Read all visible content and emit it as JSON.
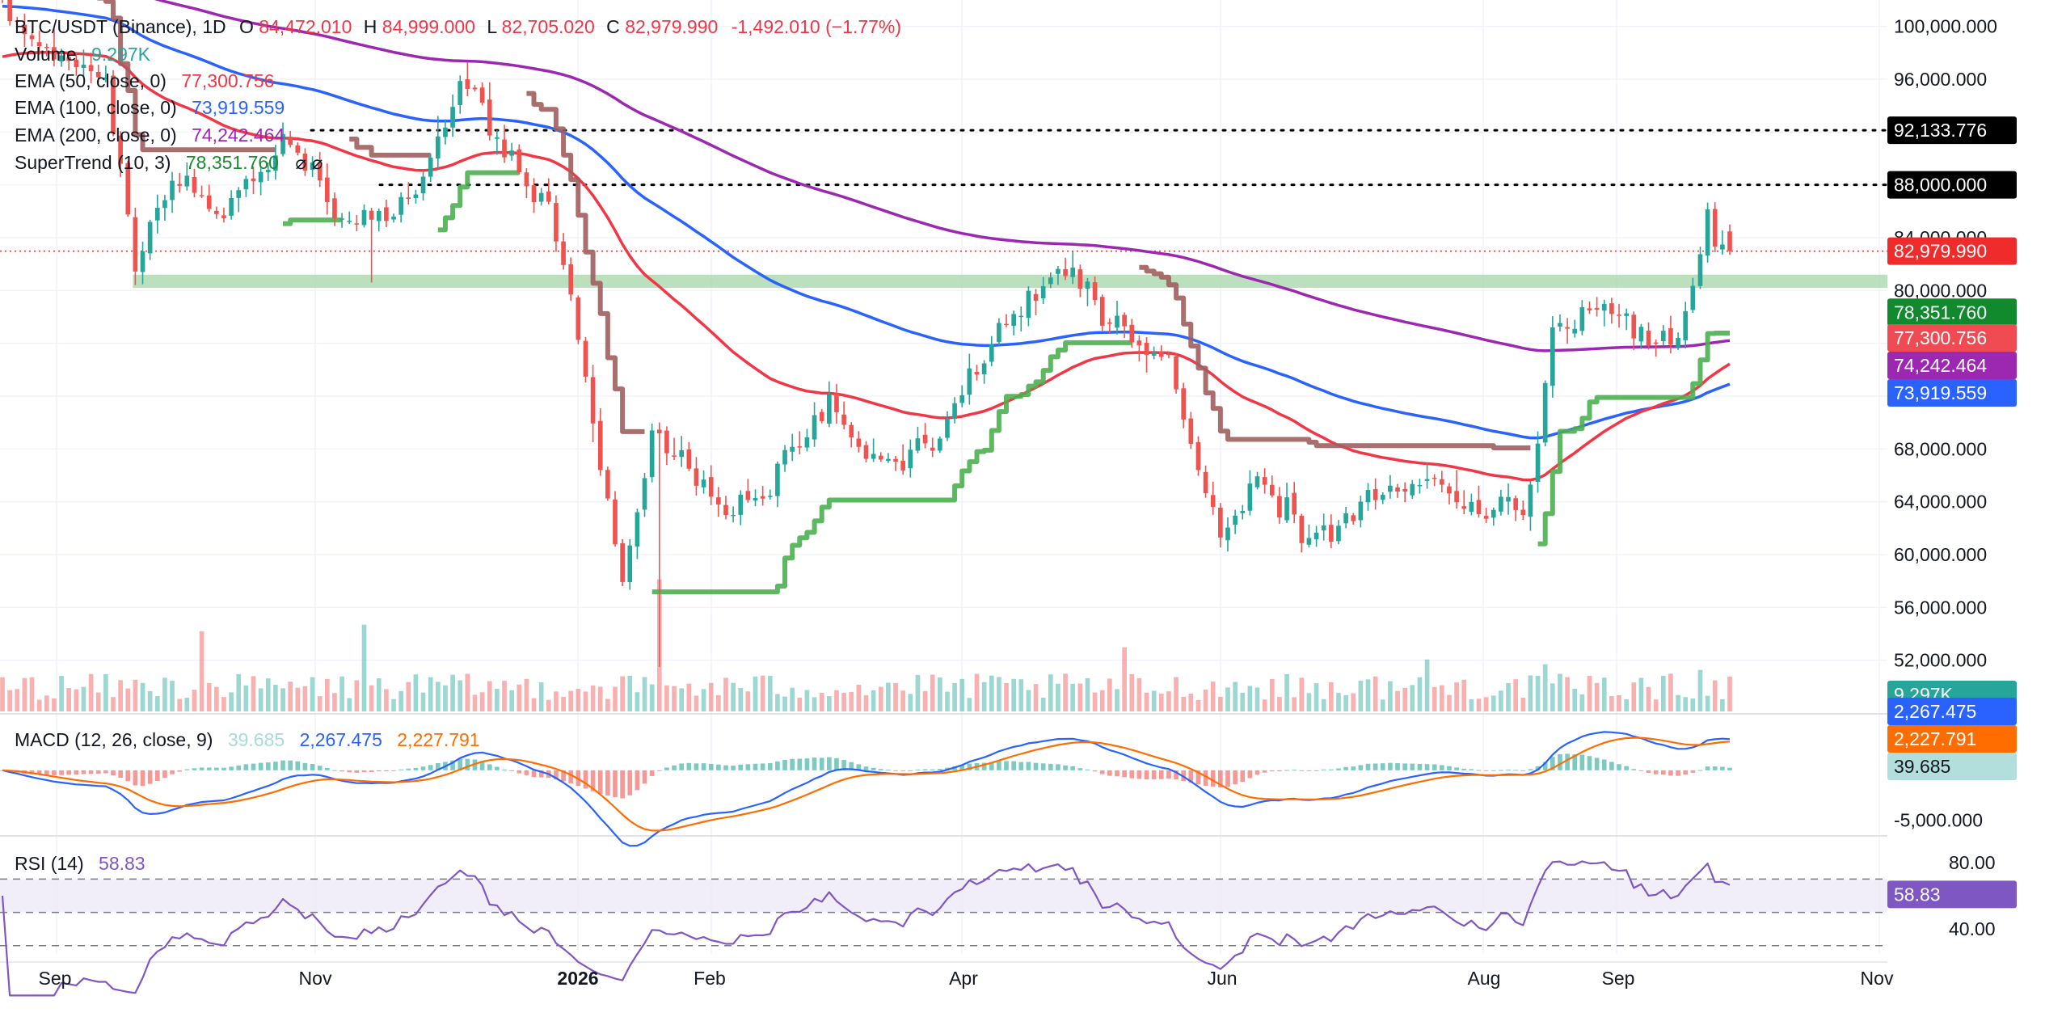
{
  "colors": {
    "up": "#26a69a",
    "down": "#ef5350",
    "ema50": "#f23645",
    "ema100": "#2962ff",
    "ema200": "#9c27b0",
    "supertrend_up": "#4caf50",
    "supertrend_down": "#a05f5f",
    "macd_line": "#2962ff",
    "signal_line": "#ff6d00",
    "hist_pos": "#26a69a",
    "hist_neg": "#ef5350",
    "rsi_line": "#7e57c2",
    "rsi_band": "#ede7f6",
    "zone": "#a5d6a7",
    "grid": "#f0f3fa",
    "axis_text": "#131722"
  },
  "legend": {
    "symbol": "BTC/USDT (Binance), 1D",
    "o_label": "O",
    "o_value": "84,472.010",
    "h_label": "H",
    "h_value": "84,999.000",
    "l_label": "L",
    "l_value": "82,705.020",
    "c_label": "C",
    "c_value": "82,979.990",
    "change": "-1,492.010 (−1.77%)",
    "volume_label": "Volume",
    "volume_value": "9.297K",
    "ema50_label": "EMA (50, close, 0)",
    "ema50_value": "77,300.756",
    "ema100_label": "EMA (100, close, 0)",
    "ema100_value": "73,919.559",
    "ema200_label": "EMA (200, close, 0)",
    "ema200_value": "74,242.464",
    "supertrend_label": "SuperTrend (10, 3)",
    "supertrend_value": "78,351.760",
    "supertrend_extra": "⌀  ⌀",
    "macd_label": "MACD (12, 26, close, 9)",
    "macd_hist": "39.685",
    "macd_value": "2,267.475",
    "macd_signal": "2,227.791",
    "rsi_label": "RSI (14)",
    "rsi_value": "58.83"
  },
  "price_badges": [
    {
      "text": "92,133.776",
      "bg": "#000000"
    },
    {
      "text": "88,000.000",
      "bg": "#000000"
    },
    {
      "text": "82,979.990",
      "bg": "#ef2b2b"
    },
    {
      "text": "78,351.760",
      "bg": "#118a2d"
    },
    {
      "text": "77,300.756",
      "bg": "#f04a52"
    },
    {
      "text": "74,242.464",
      "bg": "#9c27b0"
    },
    {
      "text": "73,919.559",
      "bg": "#2962ff"
    },
    {
      "text": "9.297K",
      "bg": "#26a69a"
    }
  ],
  "macd_badges": [
    {
      "text": "2,267.475",
      "bg": "#2962ff"
    },
    {
      "text": "2,227.791",
      "bg": "#ff6d00"
    },
    {
      "text": "39.685",
      "bg": "#b2dfdb"
    }
  ],
  "rsi_badge": {
    "text": "58.83",
    "bg": "#7e57c2"
  },
  "chart_data": {
    "type": "candlestick",
    "symbol": "BTC/USDT",
    "exchange": "Binance",
    "interval": "1D",
    "price_axis": {
      "ylim": [
        48000,
        102000
      ],
      "ticks": [
        "100,000.000",
        "96,000.000",
        "84,000.000",
        "80,000.000",
        "68,000.000",
        "64,000.000",
        "60,000.000",
        "56,000.000",
        "52,000.000"
      ]
    },
    "x_axis": {
      "ticks": [
        "Sep",
        "Nov",
        "2026",
        "Feb",
        "Apr",
        "Jun",
        "Aug",
        "Sep",
        "Nov"
      ]
    },
    "horizontal_levels": [
      92133.776,
      88000
    ],
    "current_price": 82979.99,
    "support_zone": [
      80200,
      81200
    ],
    "waypoints": [
      [
        0,
        101500
      ],
      [
        14,
        96000
      ],
      [
        18,
        82000
      ],
      [
        22,
        88000
      ],
      [
        30,
        86500
      ],
      [
        38,
        91000
      ],
      [
        46,
        85000
      ],
      [
        56,
        87500
      ],
      [
        62,
        96500
      ],
      [
        68,
        91000
      ],
      [
        74,
        86500
      ],
      [
        79,
        74000
      ],
      [
        84,
        58000
      ],
      [
        88,
        69500
      ],
      [
        94,
        66500
      ],
      [
        98,
        63000
      ],
      [
        103,
        65500
      ],
      [
        107,
        68500
      ],
      [
        112,
        71500
      ],
      [
        116,
        68000
      ],
      [
        122,
        66500
      ],
      [
        127,
        69000
      ],
      [
        132,
        73000
      ],
      [
        137,
        78000
      ],
      [
        141,
        80500
      ],
      [
        145,
        82000
      ],
      [
        149,
        78500
      ],
      [
        153,
        76500
      ],
      [
        158,
        74000
      ],
      [
        162,
        66000
      ],
      [
        165,
        61500
      ],
      [
        169,
        65500
      ],
      [
        173,
        63000
      ],
      [
        178,
        60500
      ],
      [
        182,
        62000
      ],
      [
        186,
        65000
      ],
      [
        191,
        66000
      ],
      [
        196,
        64500
      ],
      [
        201,
        63500
      ],
      [
        206,
        63000
      ],
      [
        210,
        76000
      ],
      [
        214,
        78000
      ],
      [
        218,
        79000
      ],
      [
        223,
        76500
      ],
      [
        227,
        77000
      ],
      [
        231,
        85000
      ],
      [
        234,
        82979.99
      ]
    ],
    "volume_axis": {
      "max": 12.0
    },
    "volume_spikes": [
      [
        27,
        8.5
      ],
      [
        49,
        9.2
      ],
      [
        89,
        14.0
      ],
      [
        152,
        6.8
      ],
      [
        193,
        5.5
      ],
      [
        209,
        5.0
      ],
      [
        230,
        4.4
      ]
    ],
    "macd": {
      "ylim": [
        -6500,
        5500
      ],
      "ticks": [
        "-5,000.000"
      ],
      "last": {
        "histogram": 39.685,
        "macd": 2267.475,
        "signal": 2227.791
      }
    },
    "rsi": {
      "ylim": [
        25,
        95
      ],
      "ticks": [
        "80.00",
        "40.00"
      ],
      "band": [
        50,
        70
      ],
      "levels": [
        30,
        50,
        70
      ],
      "last": 58.83
    },
    "ema_last": {
      "ema50": 77300.756,
      "ema100": 73919.559,
      "ema200": 74242.464
    },
    "supertrend_last": 78351.76,
    "volume_last": "9.297K"
  }
}
